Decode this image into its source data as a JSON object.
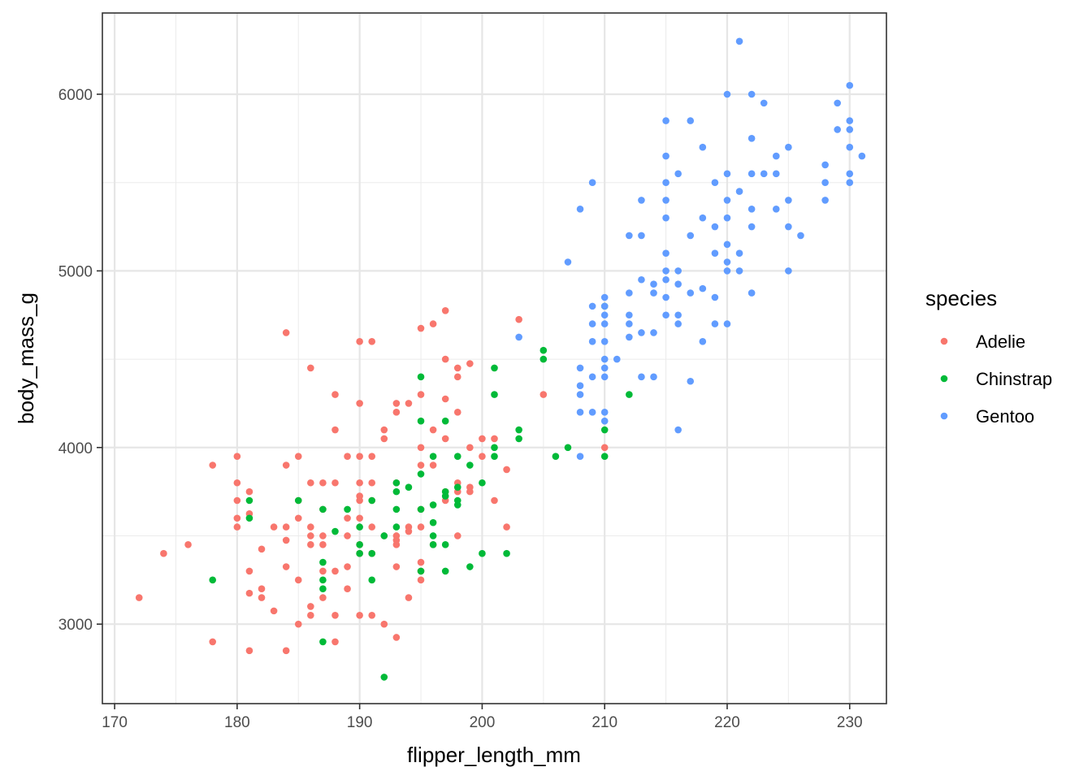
{
  "chart_data": {
    "type": "scatter",
    "title": "",
    "xlabel": "flipper_length_mm",
    "ylabel": "body_mass_g",
    "xlim": [
      169,
      233
    ],
    "ylim": [
      2550,
      6460
    ],
    "x_ticks": [
      170,
      180,
      190,
      200,
      210,
      220,
      230
    ],
    "y_ticks": [
      3000,
      4000,
      5000,
      6000
    ],
    "grid": true,
    "legend": {
      "title": "species",
      "position": "right"
    },
    "series": [
      {
        "name": "Adelie",
        "color": "#F8766D",
        "points": [
          [
            172,
            3150
          ],
          [
            174,
            3400
          ],
          [
            176,
            3450
          ],
          [
            178,
            3900
          ],
          [
            178,
            2900
          ],
          [
            180,
            3950
          ],
          [
            180,
            3800
          ],
          [
            180,
            3700
          ],
          [
            180,
            3600
          ],
          [
            180,
            3550
          ],
          [
            181,
            3750
          ],
          [
            181,
            3625
          ],
          [
            181,
            3300
          ],
          [
            181,
            3175
          ],
          [
            181,
            2850
          ],
          [
            182,
            3425
          ],
          [
            182,
            3200
          ],
          [
            182,
            3150
          ],
          [
            183,
            3550
          ],
          [
            183,
            3075
          ],
          [
            184,
            4650
          ],
          [
            184,
            3900
          ],
          [
            184,
            3550
          ],
          [
            184,
            3475
          ],
          [
            184,
            3325
          ],
          [
            184,
            2850
          ],
          [
            185,
            3950
          ],
          [
            185,
            3700
          ],
          [
            185,
            3600
          ],
          [
            185,
            3250
          ],
          [
            185,
            3000
          ],
          [
            186,
            4450
          ],
          [
            186,
            3800
          ],
          [
            186,
            3550
          ],
          [
            186,
            3500
          ],
          [
            186,
            3450
          ],
          [
            186,
            3100
          ],
          [
            186,
            3050
          ],
          [
            187,
            3800
          ],
          [
            187,
            3650
          ],
          [
            187,
            3500
          ],
          [
            187,
            3450
          ],
          [
            187,
            3300
          ],
          [
            187,
            3150
          ],
          [
            188,
            4300
          ],
          [
            188,
            4100
          ],
          [
            188,
            3800
          ],
          [
            188,
            3300
          ],
          [
            188,
            3050
          ],
          [
            188,
            2900
          ],
          [
            189,
            3950
          ],
          [
            189,
            3600
          ],
          [
            189,
            3500
          ],
          [
            189,
            3325
          ],
          [
            189,
            3200
          ],
          [
            190,
            4600
          ],
          [
            190,
            4250
          ],
          [
            190,
            3950
          ],
          [
            190,
            3800
          ],
          [
            190,
            3725
          ],
          [
            190,
            3700
          ],
          [
            190,
            3600
          ],
          [
            190,
            3450
          ],
          [
            190,
            3400
          ],
          [
            190,
            3050
          ],
          [
            191,
            4600
          ],
          [
            191,
            3950
          ],
          [
            191,
            3800
          ],
          [
            191,
            3700
          ],
          [
            191,
            3550
          ],
          [
            191,
            3400
          ],
          [
            191,
            3050
          ],
          [
            192,
            4100
          ],
          [
            192,
            4050
          ],
          [
            192,
            3500
          ],
          [
            192,
            3000
          ],
          [
            193,
            4250
          ],
          [
            193,
            4200
          ],
          [
            193,
            3800
          ],
          [
            193,
            3500
          ],
          [
            193,
            3475
          ],
          [
            193,
            3450
          ],
          [
            193,
            3325
          ],
          [
            193,
            2925
          ],
          [
            194,
            4250
          ],
          [
            194,
            3550
          ],
          [
            194,
            3525
          ],
          [
            194,
            3150
          ],
          [
            195,
            4675
          ],
          [
            195,
            4300
          ],
          [
            195,
            4000
          ],
          [
            195,
            3900
          ],
          [
            195,
            3650
          ],
          [
            195,
            3550
          ],
          [
            195,
            3350
          ],
          [
            195,
            3300
          ],
          [
            195,
            3250
          ],
          [
            196,
            4700
          ],
          [
            196,
            4100
          ],
          [
            196,
            3900
          ],
          [
            196,
            3450
          ],
          [
            197,
            4775
          ],
          [
            197,
            4500
          ],
          [
            197,
            4275
          ],
          [
            197,
            4050
          ],
          [
            197,
            3750
          ],
          [
            197,
            3700
          ],
          [
            198,
            4450
          ],
          [
            198,
            4400
          ],
          [
            198,
            4200
          ],
          [
            198,
            3800
          ],
          [
            198,
            3750
          ],
          [
            198,
            3500
          ],
          [
            199,
            4475
          ],
          [
            199,
            4000
          ],
          [
            199,
            3775
          ],
          [
            199,
            3750
          ],
          [
            200,
            4050
          ],
          [
            200,
            3950
          ],
          [
            201,
            4050
          ],
          [
            201,
            3700
          ],
          [
            202,
            3875
          ],
          [
            202,
            3550
          ],
          [
            203,
            4725
          ],
          [
            205,
            4300
          ],
          [
            210,
            4000
          ]
        ]
      },
      {
        "name": "Chinstrap",
        "color": "#00BA38",
        "points": [
          [
            178,
            3250
          ],
          [
            181,
            3700
          ],
          [
            181,
            3600
          ],
          [
            185,
            3700
          ],
          [
            187,
            3650
          ],
          [
            187,
            3350
          ],
          [
            187,
            3250
          ],
          [
            187,
            3200
          ],
          [
            187,
            2900
          ],
          [
            188,
            3525
          ],
          [
            189,
            3650
          ],
          [
            190,
            3550
          ],
          [
            190,
            3450
          ],
          [
            190,
            3400
          ],
          [
            191,
            3700
          ],
          [
            191,
            3400
          ],
          [
            191,
            3250
          ],
          [
            192,
            3500
          ],
          [
            192,
            2700
          ],
          [
            193,
            3800
          ],
          [
            193,
            3750
          ],
          [
            193,
            3650
          ],
          [
            193,
            3550
          ],
          [
            194,
            3775
          ],
          [
            195,
            4400
          ],
          [
            195,
            4150
          ],
          [
            195,
            3850
          ],
          [
            195,
            3650
          ],
          [
            195,
            3300
          ],
          [
            196,
            3950
          ],
          [
            196,
            3675
          ],
          [
            196,
            3575
          ],
          [
            196,
            3500
          ],
          [
            196,
            3450
          ],
          [
            197,
            4150
          ],
          [
            197,
            3750
          ],
          [
            197,
            3725
          ],
          [
            197,
            3450
          ],
          [
            197,
            3300
          ],
          [
            198,
            3950
          ],
          [
            198,
            3775
          ],
          [
            198,
            3700
          ],
          [
            198,
            3675
          ],
          [
            199,
            3900
          ],
          [
            199,
            3325
          ],
          [
            200,
            3800
          ],
          [
            200,
            3400
          ],
          [
            201,
            4450
          ],
          [
            201,
            4300
          ],
          [
            201,
            4000
          ],
          [
            201,
            3950
          ],
          [
            202,
            3400
          ],
          [
            203,
            4100
          ],
          [
            203,
            4050
          ],
          [
            205,
            4550
          ],
          [
            205,
            4500
          ],
          [
            206,
            3950
          ],
          [
            207,
            4000
          ],
          [
            210,
            4800
          ],
          [
            210,
            4100
          ],
          [
            210,
            3950
          ],
          [
            212,
            4300
          ]
        ]
      },
      {
        "name": "Gentoo",
        "color": "#619CFF",
        "points": [
          [
            203,
            4625
          ],
          [
            207,
            5050
          ],
          [
            208,
            5350
          ],
          [
            208,
            4450
          ],
          [
            208,
            4350
          ],
          [
            208,
            4300
          ],
          [
            208,
            4200
          ],
          [
            208,
            3950
          ],
          [
            209,
            5500
          ],
          [
            209,
            4800
          ],
          [
            209,
            4700
          ],
          [
            209,
            4600
          ],
          [
            209,
            4400
          ],
          [
            209,
            4200
          ],
          [
            210,
            4850
          ],
          [
            210,
            4800
          ],
          [
            210,
            4750
          ],
          [
            210,
            4700
          ],
          [
            210,
            4600
          ],
          [
            210,
            4500
          ],
          [
            210,
            4450
          ],
          [
            210,
            4400
          ],
          [
            210,
            4200
          ],
          [
            210,
            4150
          ],
          [
            211,
            4500
          ],
          [
            212,
            5200
          ],
          [
            212,
            4875
          ],
          [
            212,
            4750
          ],
          [
            212,
            4700
          ],
          [
            212,
            4625
          ],
          [
            213,
            5400
          ],
          [
            213,
            5200
          ],
          [
            213,
            4950
          ],
          [
            213,
            4650
          ],
          [
            213,
            4400
          ],
          [
            214,
            4925
          ],
          [
            214,
            4875
          ],
          [
            214,
            4650
          ],
          [
            214,
            4400
          ],
          [
            215,
            5850
          ],
          [
            215,
            5650
          ],
          [
            215,
            5500
          ],
          [
            215,
            5400
          ],
          [
            215,
            5300
          ],
          [
            215,
            5100
          ],
          [
            215,
            5000
          ],
          [
            215,
            4950
          ],
          [
            215,
            4850
          ],
          [
            215,
            4750
          ],
          [
            216,
            5550
          ],
          [
            216,
            5000
          ],
          [
            216,
            4925
          ],
          [
            216,
            4750
          ],
          [
            216,
            4700
          ],
          [
            216,
            4100
          ],
          [
            217,
            5850
          ],
          [
            217,
            5200
          ],
          [
            217,
            4875
          ],
          [
            217,
            4375
          ],
          [
            218,
            5700
          ],
          [
            218,
            5300
          ],
          [
            218,
            4900
          ],
          [
            218,
            4600
          ],
          [
            219,
            5500
          ],
          [
            219,
            5250
          ],
          [
            219,
            5100
          ],
          [
            219,
            4850
          ],
          [
            219,
            4700
          ],
          [
            220,
            6000
          ],
          [
            220,
            5550
          ],
          [
            220,
            5400
          ],
          [
            220,
            5300
          ],
          [
            220,
            5150
          ],
          [
            220,
            5050
          ],
          [
            220,
            5000
          ],
          [
            220,
            4700
          ],
          [
            221,
            6300
          ],
          [
            221,
            5450
          ],
          [
            221,
            5100
          ],
          [
            221,
            5000
          ],
          [
            222,
            6000
          ],
          [
            222,
            5750
          ],
          [
            222,
            5550
          ],
          [
            222,
            5350
          ],
          [
            222,
            5250
          ],
          [
            222,
            4875
          ],
          [
            223,
            5950
          ],
          [
            223,
            5550
          ],
          [
            224,
            5650
          ],
          [
            224,
            5550
          ],
          [
            224,
            5350
          ],
          [
            225,
            5700
          ],
          [
            225,
            5400
          ],
          [
            225,
            5250
          ],
          [
            225,
            5000
          ],
          [
            226,
            5200
          ],
          [
            228,
            5600
          ],
          [
            228,
            5500
          ],
          [
            228,
            5400
          ],
          [
            229,
            5950
          ],
          [
            229,
            5800
          ],
          [
            230,
            6050
          ],
          [
            230,
            5850
          ],
          [
            230,
            5800
          ],
          [
            230,
            5700
          ],
          [
            230,
            5550
          ],
          [
            230,
            5500
          ],
          [
            231,
            5650
          ]
        ]
      }
    ]
  }
}
